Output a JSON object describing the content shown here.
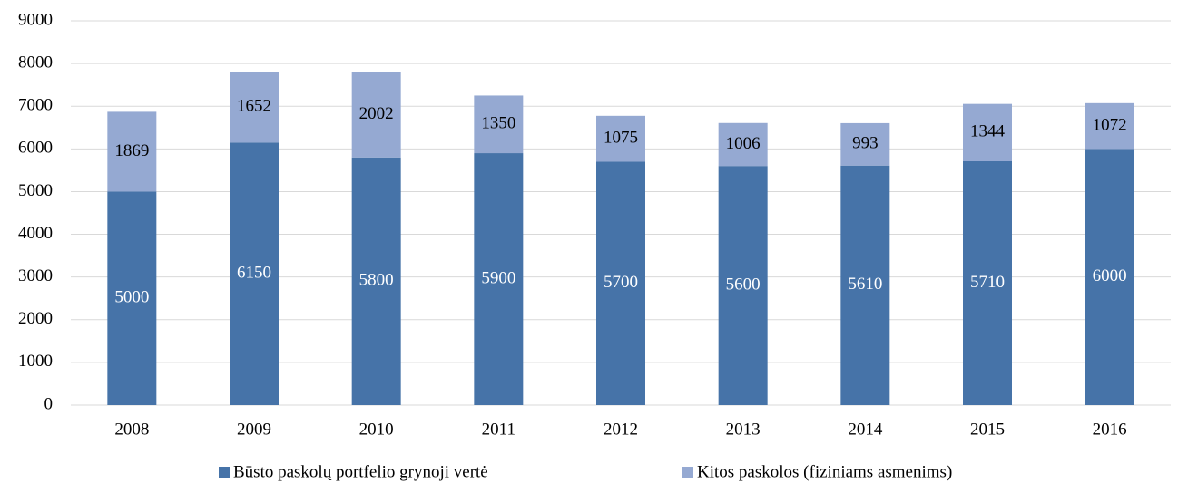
{
  "chart_data": {
    "type": "stacked_bar",
    "categories": [
      "2008",
      "2009",
      "2010",
      "2011",
      "2012",
      "2013",
      "2014",
      "2015",
      "2016"
    ],
    "series": [
      {
        "name": "Būsto paskolų portfelio grynoji vertė",
        "color": "#4673a8",
        "label_color": "#ffffff",
        "values": [
          5000,
          6150,
          5800,
          5900,
          5700,
          5600,
          5610,
          5710,
          6000
        ]
      },
      {
        "name": "Kitos paskolos (fiziniams asmenims)",
        "color": "#95a9d2",
        "label_color": "#000000",
        "values": [
          1869,
          1652,
          2002,
          1350,
          1075,
          1006,
          993,
          1344,
          1072
        ]
      }
    ],
    "ylim": [
      0,
      9000
    ],
    "yticks": [
      0,
      1000,
      2000,
      3000,
      4000,
      5000,
      6000,
      7000,
      8000,
      9000
    ],
    "grid": true,
    "legend": "bottom"
  }
}
